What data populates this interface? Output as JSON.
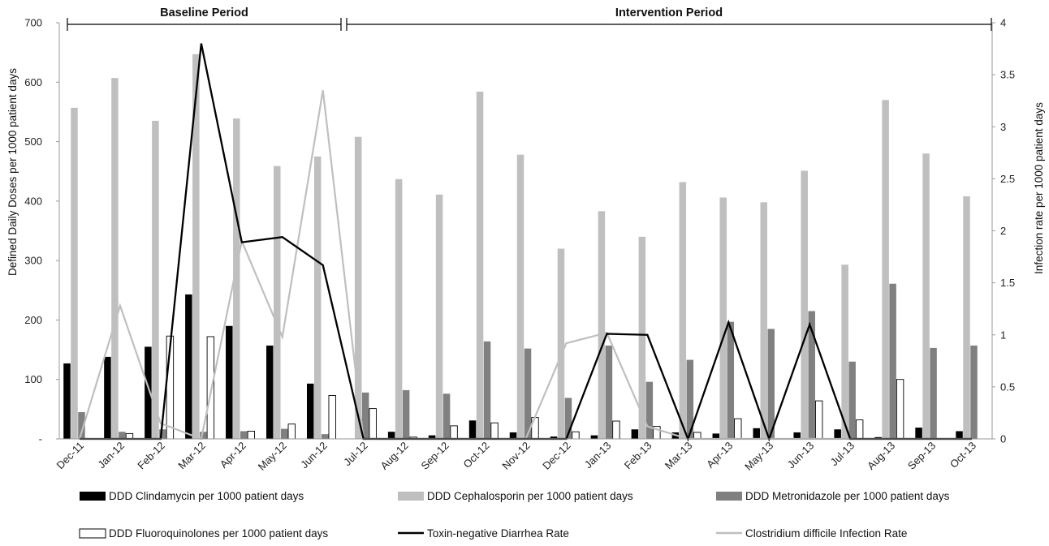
{
  "chart_data": {
    "type": "bar",
    "categories": [
      "Dec-11",
      "Jan-12",
      "Feb-12",
      "Mar-12",
      "Apr-12",
      "May-12",
      "Jun-12",
      "Jul-12",
      "Aug-12",
      "Sep-12",
      "Oct-12",
      "Nov-12",
      "Dec-12",
      "Jan-13",
      "Feb-13",
      "Mar-13",
      "Apr-13",
      "May-13",
      "Jun-13",
      "Jul-13",
      "Aug-13",
      "Sep-13",
      "Oct-13"
    ],
    "periods": [
      {
        "label": "Baseline Period",
        "from": "Dec-11",
        "to": "Jun-12"
      },
      {
        "label": "Intervention Period",
        "from": "Jul-12",
        "to": "Oct-13"
      }
    ],
    "ylabel_left": "Defined Daily Doses per 1000 patient days",
    "ylabel_right": "Infection rate per 1000 patient days",
    "ylim_left": [
      0,
      700
    ],
    "yticks_left": [
      "-",
      "100",
      "200",
      "300",
      "400",
      "500",
      "600",
      "700"
    ],
    "ylim_right": [
      0,
      4
    ],
    "yticks_right": [
      "0",
      "0.5",
      "1",
      "1.5",
      "2",
      "2.5",
      "3",
      "3.5",
      "4"
    ],
    "grid": false,
    "legend_position": "bottom",
    "bar_series": [
      {
        "name": "DDD Clindamycin per 1000 patient days",
        "color": "#000000",
        "fill": "solid",
        "values": [
          127,
          138,
          155,
          243,
          190,
          157,
          93,
          0,
          12,
          6,
          31,
          11,
          4,
          6,
          16,
          11,
          9,
          18,
          11,
          16,
          3,
          19,
          13
        ]
      },
      {
        "name": "DDD Cephalosporin per 1000 patient days",
        "color": "#bfbfbf",
        "fill": "solid",
        "values": [
          557,
          607,
          535,
          647,
          539,
          459,
          475,
          508,
          437,
          411,
          584,
          478,
          320,
          383,
          340,
          432,
          406,
          398,
          451,
          293,
          570,
          480,
          408
        ]
      },
      {
        "name": "DDD Metronidazole per 1000 patient days",
        "color": "#808080",
        "fill": "solid",
        "values": [
          45,
          12,
          16,
          12,
          13,
          17,
          8,
          78,
          82,
          76,
          164,
          152,
          69,
          157,
          96,
          133,
          197,
          185,
          215,
          130,
          261,
          153,
          157
        ]
      },
      {
        "name": "DDD Fluoroquinolones per 1000 patient days",
        "color": "#ffffff",
        "fill": "outline",
        "values": [
          0,
          9,
          173,
          172,
          13,
          25,
          73,
          51,
          3,
          22,
          27,
          36,
          12,
          30,
          21,
          11,
          34,
          0,
          64,
          32,
          100,
          0,
          0
        ]
      }
    ],
    "line_series": [
      {
        "name": "Toxin-negative Diarrhea Rate",
        "color": "#000000",
        "values": [
          0,
          0,
          0,
          3.8,
          1.89,
          1.94,
          1.67,
          0,
          0,
          0,
          0,
          0,
          0,
          1.01,
          1.0,
          0,
          1.12,
          0,
          1.1,
          0,
          0,
          0,
          0
        ]
      },
      {
        "name": "Clostridium difficile Infection Rate",
        "color": "#bfbfbf",
        "values": [
          0,
          1.28,
          0.15,
          0,
          1.9,
          0.98,
          3.35,
          0,
          0,
          0,
          0,
          0,
          0.92,
          1.02,
          0.12,
          0,
          0,
          0,
          0,
          0,
          0,
          0,
          0
        ]
      }
    ]
  }
}
